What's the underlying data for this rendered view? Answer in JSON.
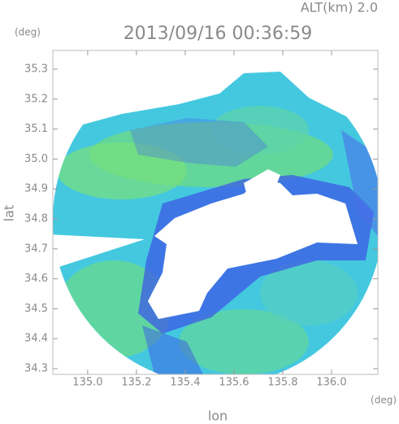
{
  "chart_data": {
    "type": "radar-map",
    "title": "2013/09/16 00:36:59",
    "subtitle": "ALT(km) 2.0",
    "x_label": "lon",
    "y_label": "lat",
    "x_unit": "(deg)",
    "y_unit": "(deg)",
    "xlim": [
      134.857,
      136.19
    ],
    "ylim": [
      34.281,
      35.3625
    ],
    "xticks": [
      {
        "value": 135,
        "label": "135.0"
      },
      135.2,
      135.4,
      135.6,
      135.8,
      {
        "value": 136,
        "label": "136.0"
      }
    ],
    "yticks": [
      34.3,
      34.4,
      34.5,
      34.6,
      34.7,
      34.8,
      34.9,
      {
        "value": 35,
        "label": "35.0"
      },
      35.1,
      35.2,
      35.3
    ]
  }
}
